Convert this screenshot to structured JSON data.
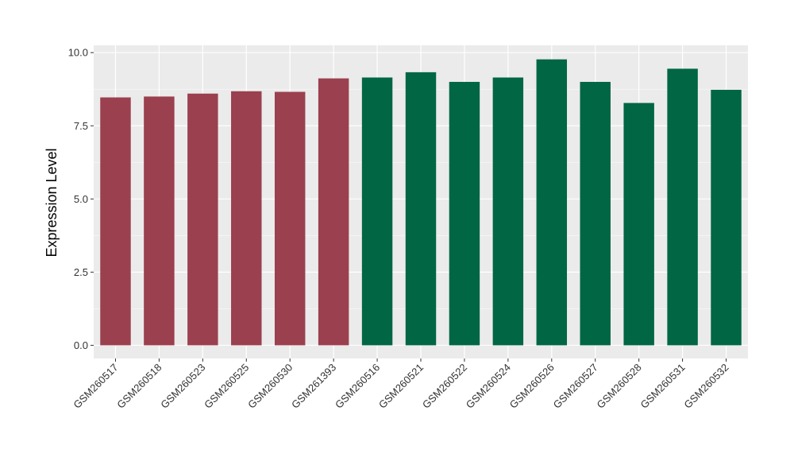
{
  "chart_data": {
    "type": "bar",
    "ylabel": "Expression Level",
    "xlabel": "",
    "ylim": [
      -0.45,
      10.25
    ],
    "yticks": [
      0.0,
      2.5,
      5.0,
      7.5,
      10.0
    ],
    "ytick_labels": [
      "0.0",
      "2.5",
      "5.0",
      "7.5",
      "10.0"
    ],
    "grid": true,
    "legend": "none",
    "colors": {
      "group_a": "#9b404f",
      "group_b": "#006644",
      "panel": "#ebebeb",
      "grid": "#ffffff"
    },
    "categories": [
      "GSM260517",
      "GSM260518",
      "GSM260523",
      "GSM260525",
      "GSM260530",
      "GSM261393",
      "GSM260516",
      "GSM260521",
      "GSM260522",
      "GSM260524",
      "GSM260526",
      "GSM260527",
      "GSM260528",
      "GSM260531",
      "GSM260532"
    ],
    "values": [
      8.47,
      8.5,
      8.6,
      8.68,
      8.66,
      9.12,
      9.15,
      9.33,
      9.0,
      9.15,
      9.77,
      9.0,
      8.28,
      9.45,
      8.73
    ],
    "groups": [
      "a",
      "a",
      "a",
      "a",
      "a",
      "a",
      "b",
      "b",
      "b",
      "b",
      "b",
      "b",
      "b",
      "b",
      "b"
    ]
  }
}
